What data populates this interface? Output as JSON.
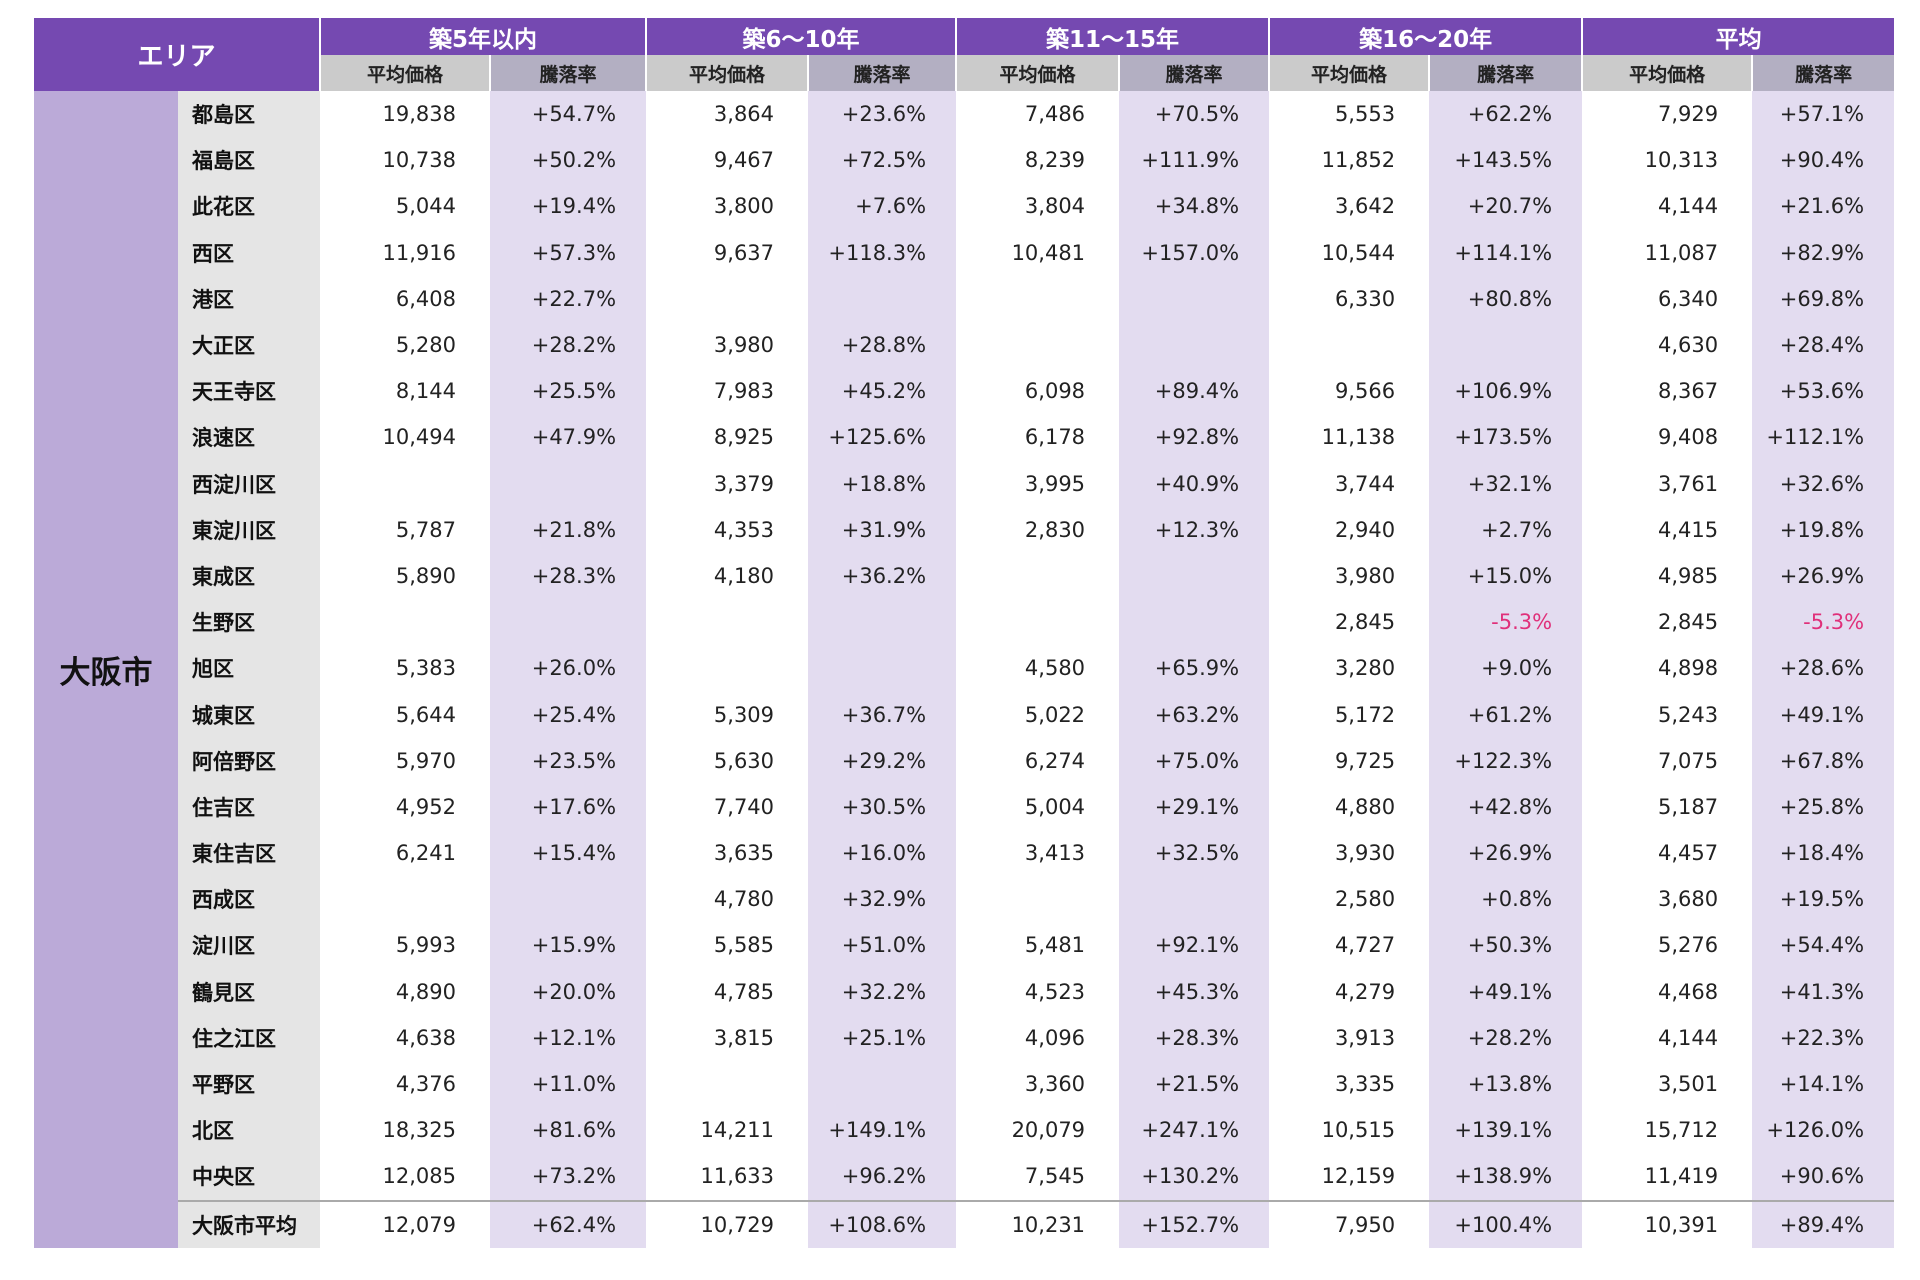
{
  "header": {
    "area": "エリア",
    "groups": [
      "築5年以内",
      "築6～10年",
      "築11～15年",
      "築16～20年",
      "平均"
    ],
    "price_label": "平均価格",
    "rate_label": "騰落率"
  },
  "city": "大阪市",
  "colors": {
    "header": "#7549b1",
    "city": "#bbaad8",
    "rate_bg": "#e3dcf0",
    "negative": "#e0307a"
  },
  "rows": [
    [
      "都島区",
      "19,838",
      "+54.7%",
      "3,864",
      "+23.6%",
      "7,486",
      "+70.5%",
      "5,553",
      "+62.2%",
      "7,929",
      "+57.1%"
    ],
    [
      "福島区",
      "10,738",
      "+50.2%",
      "9,467",
      "+72.5%",
      "8,239",
      "+111.9%",
      "11,852",
      "+143.5%",
      "10,313",
      "+90.4%"
    ],
    [
      "此花区",
      "5,044",
      "+19.4%",
      "3,800",
      "+7.6%",
      "3,804",
      "+34.8%",
      "3,642",
      "+20.7%",
      "4,144",
      "+21.6%"
    ],
    [
      "西区",
      "11,916",
      "+57.3%",
      "9,637",
      "+118.3%",
      "10,481",
      "+157.0%",
      "10,544",
      "+114.1%",
      "11,087",
      "+82.9%"
    ],
    [
      "港区",
      "6,408",
      "+22.7%",
      "",
      "",
      "",
      "",
      "6,330",
      "+80.8%",
      "6,340",
      "+69.8%"
    ],
    [
      "大正区",
      "5,280",
      "+28.2%",
      "3,980",
      "+28.8%",
      "",
      "",
      "",
      "",
      "4,630",
      "+28.4%"
    ],
    [
      "天王寺区",
      "8,144",
      "+25.5%",
      "7,983",
      "+45.2%",
      "6,098",
      "+89.4%",
      "9,566",
      "+106.9%",
      "8,367",
      "+53.6%"
    ],
    [
      "浪速区",
      "10,494",
      "+47.9%",
      "8,925",
      "+125.6%",
      "6,178",
      "+92.8%",
      "11,138",
      "+173.5%",
      "9,408",
      "+112.1%"
    ],
    [
      "西淀川区",
      "",
      "",
      "3,379",
      "+18.8%",
      "3,995",
      "+40.9%",
      "3,744",
      "+32.1%",
      "3,761",
      "+32.6%"
    ],
    [
      "東淀川区",
      "5,787",
      "+21.8%",
      "4,353",
      "+31.9%",
      "2,830",
      "+12.3%",
      "2,940",
      "+2.7%",
      "4,415",
      "+19.8%"
    ],
    [
      "東成区",
      "5,890",
      "+28.3%",
      "4,180",
      "+36.2%",
      "",
      "",
      "3,980",
      "+15.0%",
      "4,985",
      "+26.9%"
    ],
    [
      "生野区",
      "",
      "",
      "",
      "",
      "",
      "",
      "2,845",
      "-5.3%",
      "2,845",
      "-5.3%"
    ],
    [
      "旭区",
      "5,383",
      "+26.0%",
      "",
      "",
      "4,580",
      "+65.9%",
      "3,280",
      "+9.0%",
      "4,898",
      "+28.6%"
    ],
    [
      "城東区",
      "5,644",
      "+25.4%",
      "5,309",
      "+36.7%",
      "5,022",
      "+63.2%",
      "5,172",
      "+61.2%",
      "5,243",
      "+49.1%"
    ],
    [
      "阿倍野区",
      "5,970",
      "+23.5%",
      "5,630",
      "+29.2%",
      "6,274",
      "+75.0%",
      "9,725",
      "+122.3%",
      "7,075",
      "+67.8%"
    ],
    [
      "住吉区",
      "4,952",
      "+17.6%",
      "7,740",
      "+30.5%",
      "5,004",
      "+29.1%",
      "4,880",
      "+42.8%",
      "5,187",
      "+25.8%"
    ],
    [
      "東住吉区",
      "6,241",
      "+15.4%",
      "3,635",
      "+16.0%",
      "3,413",
      "+32.5%",
      "3,930",
      "+26.9%",
      "4,457",
      "+18.4%"
    ],
    [
      "西成区",
      "",
      "",
      "4,780",
      "+32.9%",
      "",
      "",
      "2,580",
      "+0.8%",
      "3,680",
      "+19.5%"
    ],
    [
      "淀川区",
      "5,993",
      "+15.9%",
      "5,585",
      "+51.0%",
      "5,481",
      "+92.1%",
      "4,727",
      "+50.3%",
      "5,276",
      "+54.4%"
    ],
    [
      "鶴見区",
      "4,890",
      "+20.0%",
      "4,785",
      "+32.2%",
      "4,523",
      "+45.3%",
      "4,279",
      "+49.1%",
      "4,468",
      "+41.3%"
    ],
    [
      "住之江区",
      "4,638",
      "+12.1%",
      "3,815",
      "+25.1%",
      "4,096",
      "+28.3%",
      "3,913",
      "+28.2%",
      "4,144",
      "+22.3%"
    ],
    [
      "平野区",
      "4,376",
      "+11.0%",
      "",
      "",
      "3,360",
      "+21.5%",
      "3,335",
      "+13.8%",
      "3,501",
      "+14.1%"
    ],
    [
      "北区",
      "18,325",
      "+81.6%",
      "14,211",
      "+149.1%",
      "20,079",
      "+247.1%",
      "10,515",
      "+139.1%",
      "15,712",
      "+126.0%"
    ],
    [
      "中央区",
      "12,085",
      "+73.2%",
      "11,633",
      "+96.2%",
      "7,545",
      "+130.2%",
      "12,159",
      "+138.9%",
      "11,419",
      "+90.6%"
    ]
  ],
  "average_row": [
    "大阪市平均",
    "12,079",
    "+62.4%",
    "10,729",
    "+108.6%",
    "10,231",
    "+152.7%",
    "7,950",
    "+100.4%",
    "10,391",
    "+89.4%"
  ]
}
